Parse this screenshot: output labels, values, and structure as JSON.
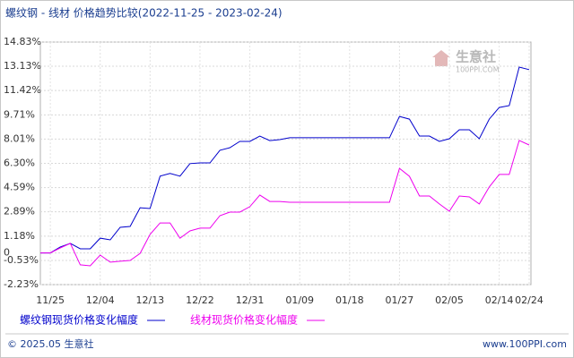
{
  "chart_data": {
    "type": "line",
    "title": "螺纹钢 - 线材 价格趋势比较(2022-11-25 - 2023-02-24)",
    "categories": [
      null,
      "11/25",
      null,
      null,
      null,
      null,
      "12/04",
      null,
      null,
      null,
      null,
      "12/13",
      null,
      null,
      null,
      null,
      "12/22",
      null,
      null,
      null,
      null,
      "12/31",
      null,
      null,
      null,
      null,
      "01/09",
      null,
      null,
      null,
      null,
      "01/18",
      null,
      null,
      null,
      null,
      "01/27",
      null,
      null,
      null,
      null,
      "02/05",
      null,
      null,
      null,
      null,
      "02/14",
      null,
      null,
      "02/24"
    ],
    "series": [
      {
        "name": "螺纹钢现货价格变化幅度",
        "color": "#0000cc",
        "values": [
          0,
          0,
          0.42,
          0.67,
          0.29,
          0.29,
          1.04,
          0.92,
          1.8,
          1.86,
          3.18,
          3.12,
          5.4,
          5.59,
          5.4,
          6.28,
          6.33,
          6.33,
          7.22,
          7.4,
          7.84,
          7.84,
          8.22,
          7.9,
          7.97,
          8.1,
          8.1,
          8.1,
          8.1,
          8.1,
          8.1,
          8.1,
          8.1,
          8.1,
          8.1,
          8.1,
          9.6,
          9.41,
          8.22,
          8.22,
          7.84,
          8.03,
          8.66,
          8.66,
          8.03,
          9.41,
          10.23,
          10.36,
          13.07,
          12.89
        ]
      },
      {
        "name": "线材现货价格变化幅度",
        "color": "#ee00ee",
        "values": [
          0,
          0,
          0.35,
          0.67,
          -0.84,
          -0.91,
          -0.15,
          -0.65,
          -0.59,
          -0.53,
          -0.03,
          1.3,
          2.11,
          2.11,
          1.04,
          1.55,
          1.74,
          1.74,
          2.62,
          2.87,
          2.87,
          3.25,
          4.07,
          3.62,
          3.62,
          3.56,
          3.56,
          3.56,
          3.56,
          3.56,
          3.56,
          3.56,
          3.56,
          3.56,
          3.56,
          3.56,
          5.95,
          5.39,
          4.0,
          4.0,
          3.44,
          2.93,
          4.0,
          3.94,
          3.44,
          4.64,
          5.52,
          5.52,
          7.91,
          7.59
        ]
      }
    ],
    "ylim": [
      -2.23,
      14.83
    ],
    "yticks": [
      {
        "value": -2.23,
        "label": "-2.23%"
      },
      {
        "value": -0.53,
        "label": "-0.53%"
      },
      0,
      {
        "value": 1.18,
        "label": "1.18%"
      },
      {
        "value": 2.89,
        "label": "2.89%"
      },
      {
        "value": 4.59,
        "label": "4.59%"
      },
      {
        "value": 6.3,
        "label": "6.30%"
      },
      {
        "value": 8.01,
        "label": "8.01%"
      },
      {
        "value": 9.71,
        "label": "9.71%"
      },
      {
        "value": 11.42,
        "label": "11.42%"
      },
      {
        "value": 13.13,
        "label": "13.13%"
      },
      {
        "value": 14.83,
        "label": "14.83%"
      }
    ],
    "grid": true,
    "watermark": {
      "name": "生意社",
      "site": "100PPI.COM"
    },
    "footer": {
      "left": "© 2025.05 生意社",
      "right": "www.100PPI.com"
    }
  }
}
